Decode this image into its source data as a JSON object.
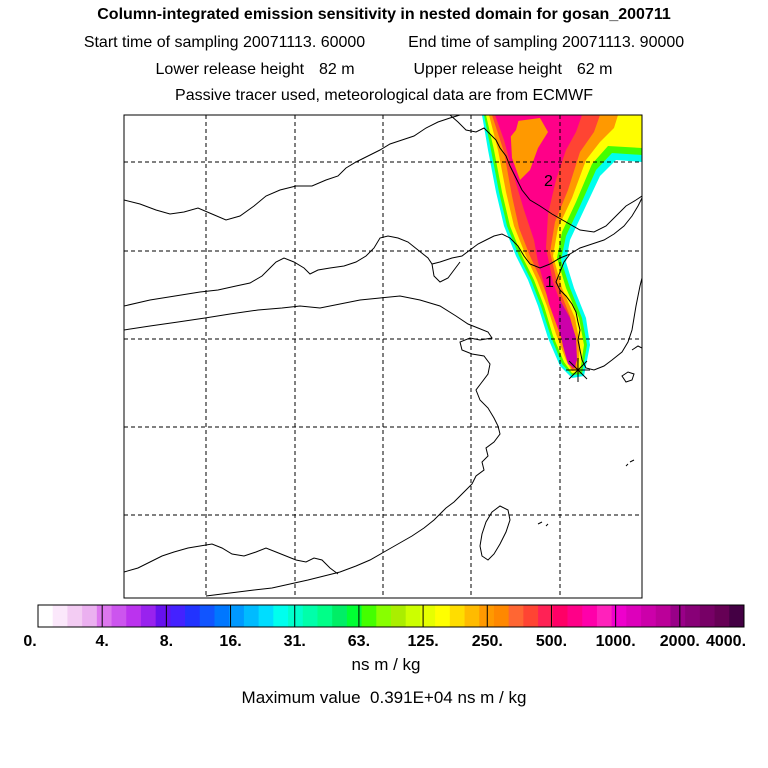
{
  "header": {
    "title": "Column-integrated emission sensitivity in nested domain for gosan_200711",
    "start_label": "Start time of sampling",
    "start_value": "20071113. 60000",
    "end_label": "End time of sampling",
    "end_value": "20071113. 90000",
    "lower_label": "Lower release height",
    "lower_value": "82 m",
    "upper_label": "Upper release height",
    "upper_value": "62 m",
    "note": "Passive tracer used, meteorological data are from ECMWF"
  },
  "map": {
    "markers": [
      "1",
      "2"
    ],
    "receptor_symbol": "*"
  },
  "colorbar": {
    "tick_labels": [
      "0.",
      "4.",
      "8.",
      "16.",
      "31.",
      "63.",
      "125.",
      "250.",
      "500.",
      "1000.",
      "2000.",
      "4000."
    ],
    "unit": "ns m / kg",
    "colors": [
      "#ffffff",
      "#fbe8fb",
      "#f3ccf3",
      "#ebb0f0",
      "#dd77ee",
      "#cc55ee",
      "#bb33ee",
      "#9922ee",
      "#6611ee",
      "#4422ff",
      "#2233ff",
      "#1155ff",
      "#0077ff",
      "#0099ff",
      "#00bbff",
      "#00ddff",
      "#00ffee",
      "#00ffcc",
      "#00ffaa",
      "#00ff88",
      "#00ee66",
      "#00ff33",
      "#44ff00",
      "#88ff00",
      "#aaee00",
      "#ccff00",
      "#e6ff00",
      "#ffff00",
      "#ffdd00",
      "#ffbb00",
      "#ff9900",
      "#ff8800",
      "#ff6633",
      "#ff4433",
      "#ff2255",
      "#ff0066",
      "#ff0088",
      "#ff00aa",
      "#ff22bb",
      "#ee00cc",
      "#dd00bb",
      "#cc00aa",
      "#bb0099",
      "#990088",
      "#880077",
      "#770066",
      "#660055",
      "#440044"
    ]
  },
  "footer": {
    "max_label": "Maximum value",
    "max_value": "0.391E+04",
    "max_unit": "ns m / kg"
  }
}
